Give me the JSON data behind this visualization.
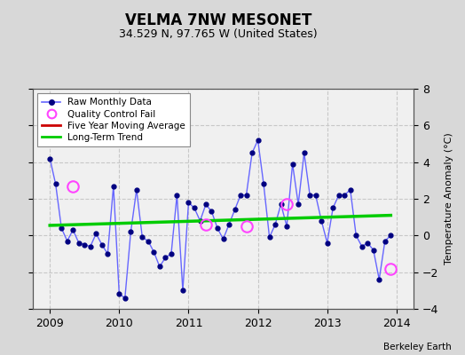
{
  "title": "VELMA 7NW MESONET",
  "subtitle": "34.529 N, 97.765 W (United States)",
  "ylabel": "Temperature Anomaly (°C)",
  "credit": "Berkeley Earth",
  "ylim": [
    -4,
    8
  ],
  "yticks": [
    -4,
    -2,
    0,
    2,
    4,
    6,
    8
  ],
  "xlim": [
    2008.75,
    2014.25
  ],
  "xticks": [
    2009,
    2010,
    2011,
    2012,
    2013,
    2014
  ],
  "bg_color": "#d8d8d8",
  "plot_bg_color": "#f0f0f0",
  "grid_color": "#c8c8c8",
  "raw_line_color": "#6666ff",
  "dot_color": "#000080",
  "trend_color": "#00cc00",
  "mavg_color": "#cc0000",
  "qc_fail_color": "#ff44ff",
  "monthly_x": [
    2009.0,
    2009.083,
    2009.167,
    2009.25,
    2009.333,
    2009.417,
    2009.5,
    2009.583,
    2009.667,
    2009.75,
    2009.833,
    2009.917,
    2010.0,
    2010.083,
    2010.167,
    2010.25,
    2010.333,
    2010.417,
    2010.5,
    2010.583,
    2010.667,
    2010.75,
    2010.833,
    2010.917,
    2011.0,
    2011.083,
    2011.167,
    2011.25,
    2011.333,
    2011.417,
    2011.5,
    2011.583,
    2011.667,
    2011.75,
    2011.833,
    2011.917,
    2012.0,
    2012.083,
    2012.167,
    2012.25,
    2012.333,
    2012.417,
    2012.5,
    2012.583,
    2012.667,
    2012.75,
    2012.833,
    2012.917,
    2013.0,
    2013.083,
    2013.167,
    2013.25,
    2013.333,
    2013.417,
    2013.5,
    2013.583,
    2013.667,
    2013.75,
    2013.833,
    2013.917
  ],
  "monthly_y": [
    4.2,
    2.8,
    0.4,
    -0.3,
    0.3,
    -0.4,
    -0.5,
    -0.6,
    0.1,
    -0.5,
    -1.0,
    2.7,
    -3.2,
    -3.4,
    0.2,
    2.5,
    -0.1,
    -0.3,
    -0.9,
    -1.7,
    -1.2,
    -1.0,
    2.2,
    -3.0,
    1.8,
    1.5,
    0.8,
    1.7,
    1.3,
    0.4,
    -0.2,
    0.6,
    1.4,
    2.2,
    2.2,
    4.5,
    5.2,
    2.8,
    -0.1,
    0.6,
    1.7,
    0.5,
    3.9,
    1.7,
    4.5,
    2.2,
    2.2,
    0.8,
    -0.4,
    1.5,
    2.2,
    2.2,
    2.5,
    0.0,
    -0.6,
    -0.4,
    -0.8,
    -2.4,
    -0.3,
    0.0
  ],
  "qc_fail_x": [
    2009.333,
    2011.25,
    2011.833,
    2012.417,
    2013.917
  ],
  "qc_fail_y": [
    2.7,
    0.6,
    0.5,
    1.7,
    -1.8
  ],
  "trend_x": [
    2009.0,
    2013.917
  ],
  "trend_y": [
    0.55,
    1.1
  ],
  "title_fontsize": 12,
  "subtitle_fontsize": 9,
  "label_fontsize": 8,
  "tick_fontsize": 9,
  "credit_fontsize": 7.5,
  "legend_fontsize": 7.5
}
